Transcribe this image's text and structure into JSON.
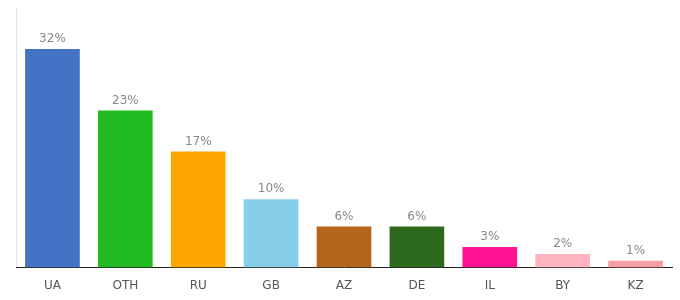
{
  "chart_data": {
    "type": "bar",
    "categories": [
      "UA",
      "OTH",
      "RU",
      "GB",
      "AZ",
      "DE",
      "IL",
      "BY",
      "KZ"
    ],
    "values": [
      32,
      23,
      17,
      10,
      6,
      6,
      3,
      2,
      1
    ],
    "value_labels": [
      "32%",
      "23%",
      "17%",
      "10%",
      "6%",
      "6%",
      "3%",
      "2%",
      "1%"
    ],
    "colors": [
      "#4472c4",
      "#22bb22",
      "#ffa500",
      "#87ceeb",
      "#b5651d",
      "#2d6a1e",
      "#ff1493",
      "#ffb6c1",
      "#f4a0a0"
    ],
    "ylim": [
      0,
      38
    ],
    "grid": false,
    "data_labels": true,
    "tick_labels": "x"
  }
}
